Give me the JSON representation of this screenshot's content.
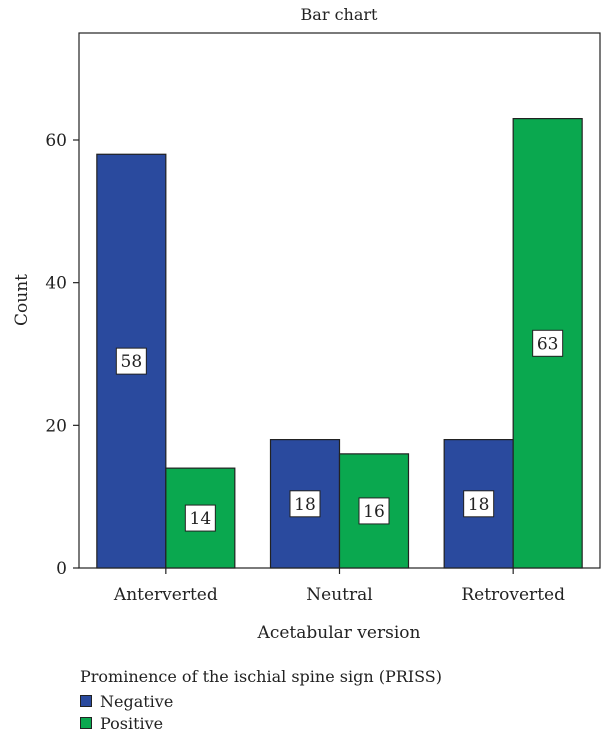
{
  "chart_data": {
    "type": "bar",
    "title": "Bar chart",
    "xlabel": "Acetabular version",
    "ylabel": "Count",
    "categories": [
      "Anterverted",
      "Neutral",
      "Retroverted"
    ],
    "ylim": [
      0,
      75
    ],
    "yticks": [
      0,
      20,
      40,
      60
    ],
    "grid": false,
    "legend_placement": "bottom-left",
    "legend_title": "Prominence of the ischial spine sign (PRISS)",
    "series": [
      {
        "name": "Negative",
        "color": "#2a4a9e",
        "values": [
          58,
          18,
          18
        ]
      },
      {
        "name": "Positive",
        "color": "#0aa84f",
        "values": [
          14,
          16,
          63
        ]
      }
    ],
    "data_labels": true
  }
}
